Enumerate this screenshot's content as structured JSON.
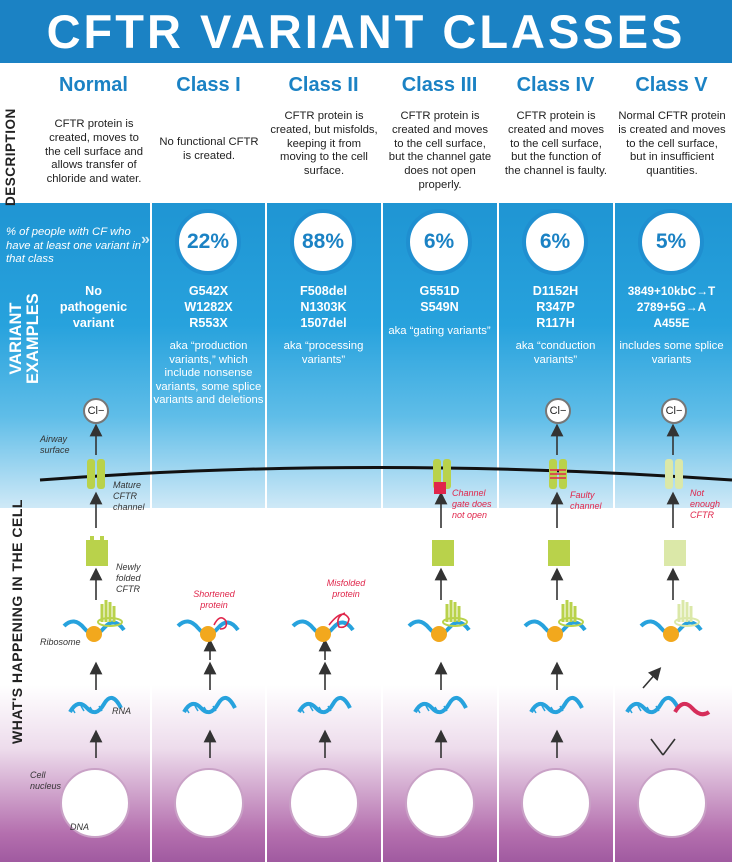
{
  "title": "CFTR VARIANT CLASSES",
  "row_labels": {
    "description": "DESCRIPTION",
    "variant_examples_1": "VARIANT",
    "variant_examples_2": "EXAMPLES",
    "cell": "WHAT'S HAPPENING IN THE CELL"
  },
  "percent_note": "% of people with CF who have at least one variant in that class",
  "columns": [
    {
      "name": "Normal",
      "description": "CFTR protein is created, moves to the cell surface and allows transfer of chloride and water.",
      "percent": "",
      "variants": [
        "No",
        "pathogenic",
        "variant"
      ],
      "aka": ""
    },
    {
      "name": "Class I",
      "description": "No functional CFTR is created.",
      "percent": "22%",
      "variants": [
        "G542X",
        "W1282X",
        "R553X"
      ],
      "aka": "aka “production variants,” which include nonsense variants, some splice variants and deletions"
    },
    {
      "name": "Class II",
      "description": "CFTR protein is created, but misfolds, keeping it from moving to the cell surface.",
      "percent": "88%",
      "variants": [
        "F508del",
        "N1303K",
        "1507del"
      ],
      "aka": "aka “processing variants”"
    },
    {
      "name": "Class III",
      "description": "CFTR protein is created and moves to the cell surface, but the channel gate does not open properly.",
      "percent": "6%",
      "variants": [
        "G551D",
        "S549N"
      ],
      "aka": "aka “gating variants”"
    },
    {
      "name": "Class IV",
      "description": "CFTR protein is created and moves to the cell surface, but the function of the channel is faulty.",
      "percent": "6%",
      "variants": [
        "D1152H",
        "R347P",
        "R117H"
      ],
      "aka": "aka “conduction variants”"
    },
    {
      "name": "Class V",
      "description": "Normal CFTR protein is created and moves to the cell surface, but in insufficient quantities.",
      "percent": "5%",
      "variants": [
        "3849+10kbC→T",
        "2789+5G→A",
        "A455E"
      ],
      "aka": "includes some splice variants"
    }
  ],
  "cell_labels": {
    "airway": "Airway surface",
    "mature": "Mature CFTR channel",
    "newly_folded": "Newly folded CFTR",
    "ribosome": "Ribosome",
    "rna": "RNA",
    "nucleus": "Cell nucleus",
    "dna": "DNA"
  },
  "ion": "Cl−",
  "defect_labels": {
    "class1": "Shortened protein",
    "class2": "Misfolded protein",
    "class3": "Channel gate does not open",
    "class4": "Faulty channel",
    "class5": "Not enough CFTR"
  },
  "colors": {
    "blue": "#1b82c4",
    "green": "#b9d24b",
    "pale_green": "#dbe8a8",
    "red": "#e0264b",
    "orange": "#f2a81d",
    "purple": "#a05aa0"
  }
}
